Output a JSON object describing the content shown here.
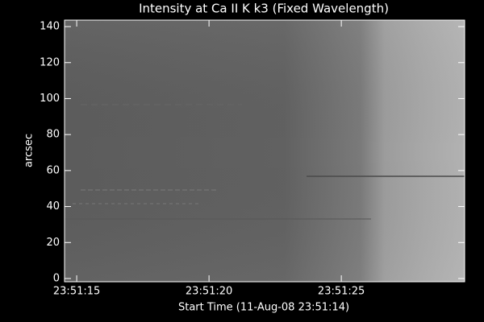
{
  "chart_data": {
    "type": "image",
    "title": "Intensity at Ca II K k3 (Fixed Wavelength)",
    "x_label": "Start Time (11-Aug-08 23:51:14)",
    "y_label": "arcsec",
    "xlim": [
      0.54,
      15.66
    ],
    "xticks": [
      {
        "value": 1,
        "label": "23:51:15"
      },
      {
        "value": 6,
        "label": "23:51:20"
      },
      {
        "value": 11,
        "label": "23:51:25"
      }
    ],
    "ylim": [
      -1.8,
      143.6
    ],
    "yticks": [
      0,
      20,
      40,
      60,
      80,
      100,
      120,
      140
    ]
  }
}
